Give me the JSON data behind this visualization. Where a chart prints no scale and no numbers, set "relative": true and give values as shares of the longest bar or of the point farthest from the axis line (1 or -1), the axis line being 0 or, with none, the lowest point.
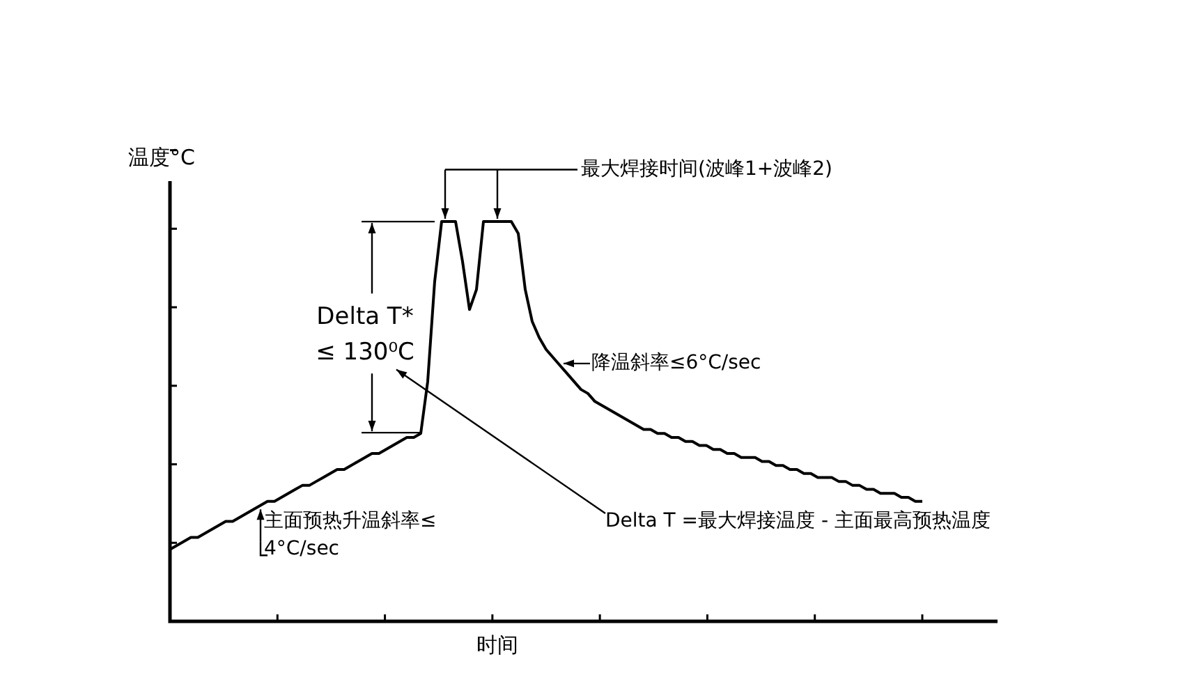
{
  "chart_data": {
    "type": "line",
    "relative": true,
    "ylabel": "温度°C",
    "xlabel": "时间",
    "color": "#000000",
    "marker": "none",
    "grid": false,
    "legend": false,
    "categories": [
      null,
      null,
      null,
      null,
      null,
      null,
      null,
      null,
      null,
      null,
      null,
      null,
      null,
      null,
      null,
      null,
      null,
      null,
      null,
      null,
      null,
      null,
      null,
      null,
      null,
      null,
      null,
      null,
      null,
      null,
      null,
      null,
      null,
      null,
      null,
      null,
      null,
      null,
      null,
      null,
      null,
      null,
      null,
      null,
      null,
      null,
      null,
      null,
      null,
      null,
      null,
      null,
      null,
      null,
      null,
      null,
      null,
      null,
      null,
      null,
      null,
      null,
      null,
      null,
      null,
      null,
      null,
      null,
      null,
      null,
      null,
      null,
      null,
      null,
      null,
      null,
      null,
      null,
      null,
      null,
      null,
      null,
      null,
      null,
      null,
      null,
      null,
      null,
      null,
      null,
      null,
      null,
      null,
      null,
      null,
      null,
      null,
      null,
      null,
      null,
      null,
      null,
      null,
      null,
      null,
      null,
      null,
      null,
      null
    ],
    "values": [
      0.18,
      0.19,
      0.2,
      0.21,
      0.21,
      0.22,
      0.23,
      0.24,
      0.25,
      0.25,
      0.26,
      0.27,
      0.28,
      0.29,
      0.3,
      0.3,
      0.31,
      0.32,
      0.33,
      0.34,
      0.34,
      0.35,
      0.36,
      0.37,
      0.38,
      0.38,
      0.39,
      0.4,
      0.41,
      0.42,
      0.42,
      0.43,
      0.44,
      0.45,
      0.46,
      0.46,
      0.47,
      0.6,
      0.85,
      1,
      1,
      1,
      0.9,
      0.78,
      0.83,
      1,
      1,
      1,
      1,
      1,
      0.97,
      0.83,
      0.75,
      0.71,
      0.68,
      0.66,
      0.64,
      0.62,
      0.6,
      0.58,
      0.57,
      0.55,
      0.54,
      0.53,
      0.52,
      0.51,
      0.5,
      0.49,
      0.48,
      0.48,
      0.47,
      0.47,
      0.46,
      0.46,
      0.45,
      0.45,
      0.44,
      0.44,
      0.43,
      0.43,
      0.42,
      0.42,
      0.41,
      0.41,
      0.41,
      0.4,
      0.4,
      0.39,
      0.39,
      0.38,
      0.38,
      0.37,
      0.37,
      0.36,
      0.36,
      0.36,
      0.35,
      0.35,
      0.34,
      0.34,
      0.33,
      0.33,
      0.32,
      0.32,
      0.32,
      0.31,
      0.31,
      0.3,
      0.3
    ],
    "annotations": [
      "最大焊接时间(波峰1+波峰2)",
      "Delta T*",
      "≤ 130⁰C",
      "降温斜率≤6°C/sec",
      "主面预热升温斜率≤",
      "4°C/sec",
      "Delta T =最大焊接温度 - 主面最高预热温度"
    ]
  }
}
